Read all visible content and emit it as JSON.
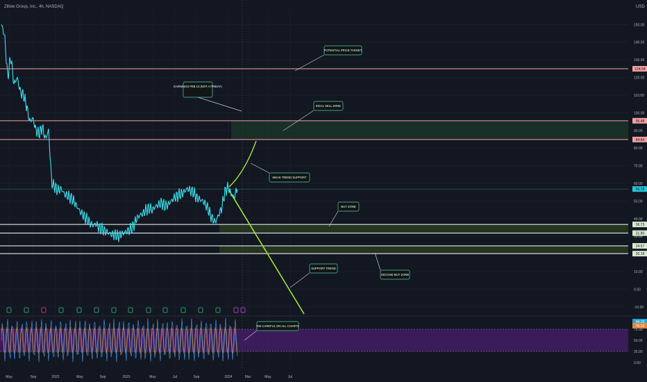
{
  "header": {
    "symbol_title": "Zillow Group, Inc., 4h, NASDAQ",
    "currency": "USD"
  },
  "colors": {
    "background": "#131722",
    "price_line": "#3fe0ee",
    "zone_line": "#f6a3a3",
    "support_line": "#ffffff",
    "trend": "#a4e434",
    "rsi_band": "#4a1f6e",
    "callout_bg": "#0f1614",
    "callout_border": "#5fc8a8",
    "grid": "#1e222d",
    "axis_text": "#b2b5be"
  },
  "chart_data": {
    "type": "line",
    "series": [
      {
        "values": [
          150,
          144,
          120,
          132,
          116,
          120,
          112,
          110,
          104,
          95,
          97,
          90,
          88,
          92,
          85,
          90,
          60,
          58,
          56,
          57,
          54,
          53,
          52,
          50,
          47,
          44,
          42,
          40,
          38,
          36,
          37,
          35,
          34,
          33,
          32,
          31,
          31,
          30,
          31,
          32,
          33,
          34,
          36,
          40,
          42,
          43,
          45,
          46,
          45,
          47,
          48,
          49,
          47,
          48,
          50,
          52,
          53,
          54,
          55,
          57,
          56,
          55,
          52,
          51,
          50,
          48,
          44,
          40,
          38,
          42,
          46,
          55,
          58,
          54,
          52,
          58
        ]
      }
    ],
    "x_ticks": [
      "May",
      "Sep",
      "2022",
      "May",
      "Sep",
      "2023",
      "May",
      "Jul",
      "Sep",
      "2024",
      "Mar",
      "May",
      "Jul"
    ],
    "y_ticks": [
      "150.00",
      "140.00",
      "130.00",
      "120.00",
      "110.00",
      "100.00",
      "90.00",
      "80.00",
      "70.00",
      "60.00",
      "50.00",
      "40.00",
      "30.00",
      "20.00",
      "10.00",
      "0.00",
      "-10.00"
    ],
    "ylim": [
      -14,
      158
    ],
    "horizontal_levels": [
      {
        "value": 124.94,
        "label": "124.94",
        "kind": "target"
      },
      {
        "value": 95.48,
        "label": "95.48",
        "kind": "resistance"
      },
      {
        "value": 84.84,
        "label": "84.84",
        "kind": "resistance"
      },
      {
        "value": 36.73,
        "label": "36.73",
        "kind": "support"
      },
      {
        "value": 31.8,
        "label": "31.80",
        "kind": "support"
      },
      {
        "value": 24.57,
        "label": "24.57",
        "kind": "support"
      },
      {
        "value": 20.18,
        "label": "20.18",
        "kind": "support"
      }
    ],
    "current_price": {
      "value": 56.78,
      "label": "56.78"
    },
    "annotations": [
      {
        "id": "potential-price-target",
        "text": "POTENTIAL PRICE TARGET"
      },
      {
        "id": "earnings",
        "text": "EARNINGS FEB 13 (NOT A FRIDAY)"
      },
      {
        "id": "ideal-sell-zone",
        "text": "IDEAL SELL ZONE"
      },
      {
        "id": "weak-trend-support",
        "text": "WEAK TREND SUPPORT"
      },
      {
        "id": "buy-zone",
        "text": "BUY ZONE"
      },
      {
        "id": "second-buy-zone",
        "text": "SECOND BUY ZONE"
      },
      {
        "id": "support-trend",
        "text": "SUPPORT TREND"
      },
      {
        "id": "rsi-careful",
        "text": "RSI CAREFUL ON ALL CHARTS"
      }
    ],
    "rsi": {
      "y_ticks": [
        "75.00",
        "50.00",
        "25.00",
        "0.00"
      ],
      "current_labels": [
        "94.19",
        "76.19"
      ],
      "band": [
        25,
        75
      ]
    }
  }
}
